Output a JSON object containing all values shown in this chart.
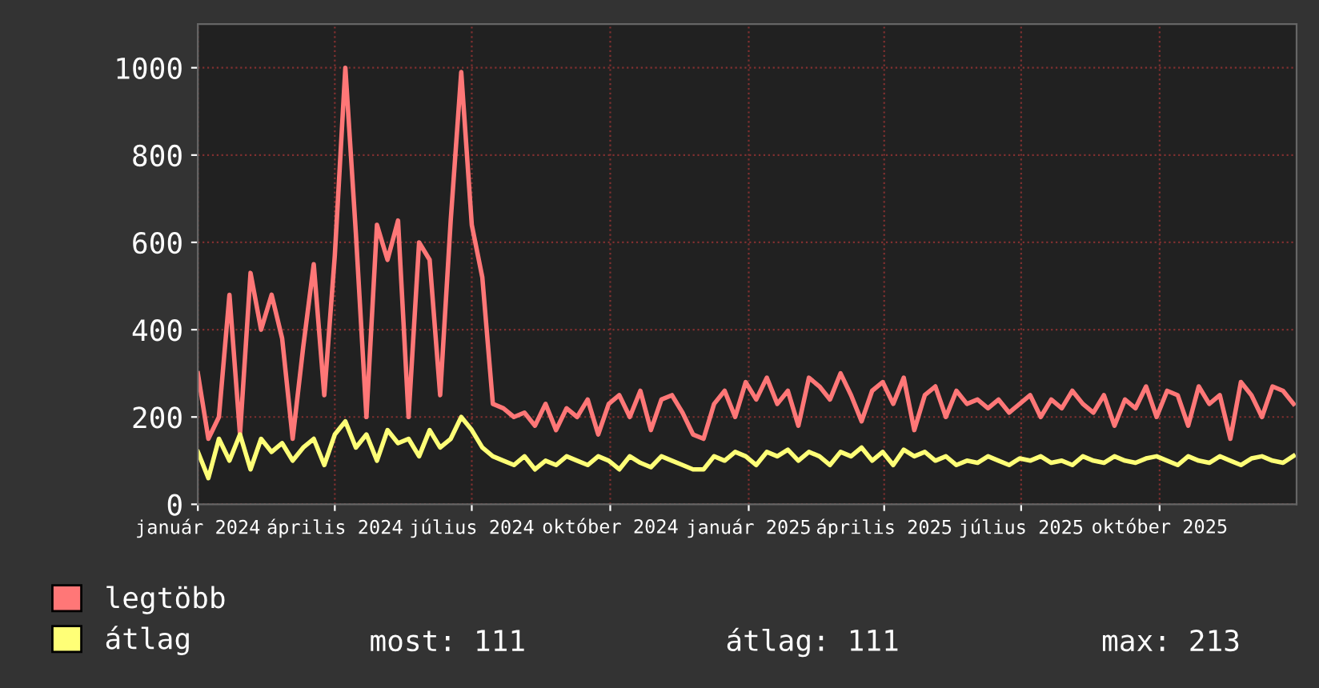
{
  "chart_data": {
    "type": "line",
    "x": [
      "2024-01-01",
      "2024-01-08",
      "2024-01-15",
      "2024-01-22",
      "2024-01-29",
      "2024-02-05",
      "2024-02-12",
      "2024-02-19",
      "2024-02-26",
      "2024-03-04",
      "2024-03-11",
      "2024-03-18",
      "2024-03-25",
      "2024-04-01",
      "2024-04-08",
      "2024-04-15",
      "2024-04-22",
      "2024-04-29",
      "2024-05-06",
      "2024-05-13",
      "2024-05-20",
      "2024-05-27",
      "2024-06-03",
      "2024-06-10",
      "2024-06-17",
      "2024-06-24",
      "2024-07-01",
      "2024-07-08",
      "2024-07-15",
      "2024-07-22",
      "2024-07-29",
      "2024-08-05",
      "2024-08-12",
      "2024-08-19",
      "2024-08-26",
      "2024-09-02",
      "2024-09-09",
      "2024-09-16",
      "2024-09-23",
      "2024-09-30",
      "2024-10-07",
      "2024-10-14",
      "2024-10-21",
      "2024-10-28",
      "2024-11-04",
      "2024-11-11",
      "2024-11-18",
      "2024-11-25",
      "2024-12-02",
      "2024-12-09",
      "2024-12-16",
      "2024-12-23",
      "2024-12-30",
      "2025-01-06",
      "2025-01-13",
      "2025-01-20",
      "2025-01-27",
      "2025-02-03",
      "2025-02-10",
      "2025-02-17",
      "2025-02-24",
      "2025-03-03",
      "2025-03-10",
      "2025-03-17",
      "2025-03-24",
      "2025-03-31",
      "2025-04-07",
      "2025-04-14",
      "2025-04-21",
      "2025-04-28",
      "2025-05-05",
      "2025-05-12",
      "2025-05-19",
      "2025-05-26",
      "2025-06-02",
      "2025-06-09",
      "2025-06-16",
      "2025-06-23",
      "2025-06-30",
      "2025-07-07",
      "2025-07-14",
      "2025-07-21",
      "2025-07-28",
      "2025-08-04",
      "2025-08-11",
      "2025-08-18",
      "2025-08-25",
      "2025-09-01",
      "2025-09-08",
      "2025-09-15",
      "2025-09-22",
      "2025-09-29",
      "2025-10-06",
      "2025-10-13",
      "2025-10-20",
      "2025-10-27",
      "2025-11-03",
      "2025-11-10",
      "2025-11-17",
      "2025-11-24",
      "2025-12-01",
      "2025-12-08",
      "2025-12-15",
      "2025-12-22",
      "2025-12-29"
    ],
    "series": [
      {
        "name": "legtöbb",
        "color": "#ff7777",
        "values": [
          300,
          150,
          200,
          480,
          160,
          530,
          400,
          480,
          380,
          150,
          360,
          550,
          250,
          570,
          1000,
          620,
          200,
          640,
          560,
          650,
          200,
          600,
          560,
          250,
          650,
          990,
          640,
          520,
          230,
          220,
          200,
          210,
          180,
          230,
          170,
          220,
          200,
          240,
          160,
          230,
          250,
          200,
          260,
          170,
          240,
          250,
          210,
          160,
          150,
          230,
          260,
          200,
          280,
          240,
          290,
          230,
          260,
          180,
          290,
          270,
          240,
          300,
          250,
          190,
          260,
          280,
          230,
          290,
          170,
          250,
          270,
          200,
          260,
          230,
          240,
          220,
          240,
          210,
          230,
          250,
          200,
          240,
          220,
          260,
          230,
          210,
          250,
          180,
          240,
          220,
          270,
          200,
          260,
          250,
          180,
          270,
          230,
          250,
          150,
          280,
          250,
          200,
          270,
          260,
          230
        ]
      },
      {
        "name": "átlag",
        "color": "#ffff77",
        "values": [
          120,
          60,
          150,
          100,
          160,
          80,
          150,
          120,
          140,
          100,
          130,
          150,
          90,
          160,
          190,
          130,
          160,
          100,
          170,
          140,
          150,
          110,
          170,
          130,
          150,
          200,
          170,
          130,
          110,
          100,
          90,
          110,
          80,
          100,
          90,
          110,
          100,
          90,
          110,
          100,
          80,
          110,
          95,
          85,
          110,
          100,
          90,
          80,
          80,
          110,
          100,
          120,
          110,
          90,
          120,
          110,
          125,
          100,
          120,
          110,
          90,
          120,
          110,
          130,
          100,
          120,
          90,
          125,
          110,
          120,
          100,
          110,
          90,
          100,
          95,
          110,
          100,
          90,
          105,
          100,
          110,
          95,
          100,
          90,
          110,
          100,
          95,
          110,
          100,
          95,
          105,
          110,
          100,
          90,
          110,
          100,
          95,
          110,
          100,
          90,
          105,
          110,
          100,
          95,
          111
        ]
      }
    ],
    "xlim": [
      "2024-01-01",
      "2025-12-31"
    ],
    "xticks": [
      {
        "value": "2024-01-01",
        "label": "január 2024"
      },
      {
        "value": "2024-04-01",
        "label": "április 2024"
      },
      {
        "value": "2024-07-01",
        "label": "július 2024"
      },
      {
        "value": "2024-10-01",
        "label": "október 2024"
      },
      {
        "value": "2025-01-01",
        "label": "január 2025"
      },
      {
        "value": "2025-04-01",
        "label": "április 2025"
      },
      {
        "value": "2025-07-01",
        "label": "július 2025"
      },
      {
        "value": "2025-10-01",
        "label": "október 2025"
      }
    ],
    "ylim": [
      0,
      1100
    ],
    "yticks": [
      0,
      200,
      400,
      600,
      800,
      1000
    ],
    "grid": true,
    "legend": "bottom",
    "marker": "none",
    "line_style": "solid",
    "annotations": [
      "most: 111",
      "átlag: 111",
      "max: 213"
    ]
  }
}
